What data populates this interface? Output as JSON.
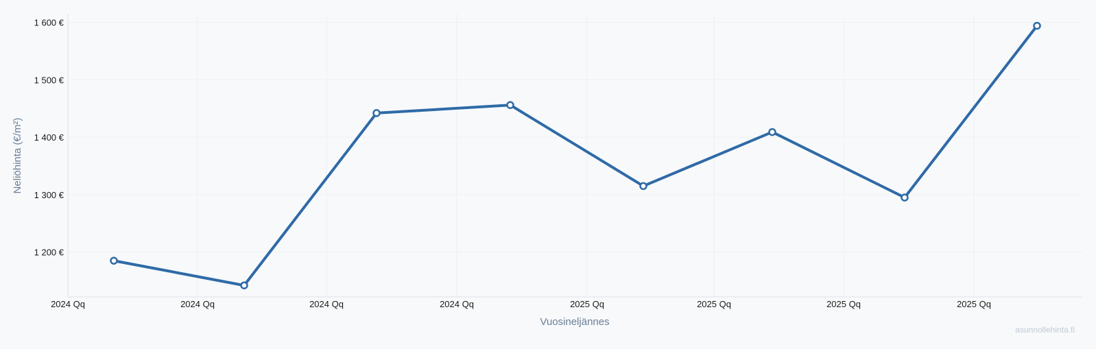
{
  "chart_data": {
    "type": "line",
    "title": "",
    "xlabel": "Vuosineljännes",
    "ylabel": "Neliöhinta (€/m²)",
    "x_tick_labels": [
      "2024 Qq",
      "2024 Qq",
      "2024 Qq",
      "2024 Qq",
      "2025 Qq",
      "2025 Qq",
      "2025 Qq",
      "2025 Qq"
    ],
    "y_tick_labels": [
      "1 200 €",
      "1 300 €",
      "1 400 €",
      "1 500 €",
      "1 600 €"
    ],
    "y_ticks": [
      1200,
      1300,
      1400,
      1500,
      1600
    ],
    "ylim": [
      1122,
      1615
    ],
    "grid": true,
    "series": [
      {
        "color": "#2f6aa6",
        "values": [
          1185,
          1142,
          1442,
          1456,
          1315,
          1409,
          1295,
          1594
        ]
      }
    ]
  },
  "watermark": "asunnollehinta.fi"
}
